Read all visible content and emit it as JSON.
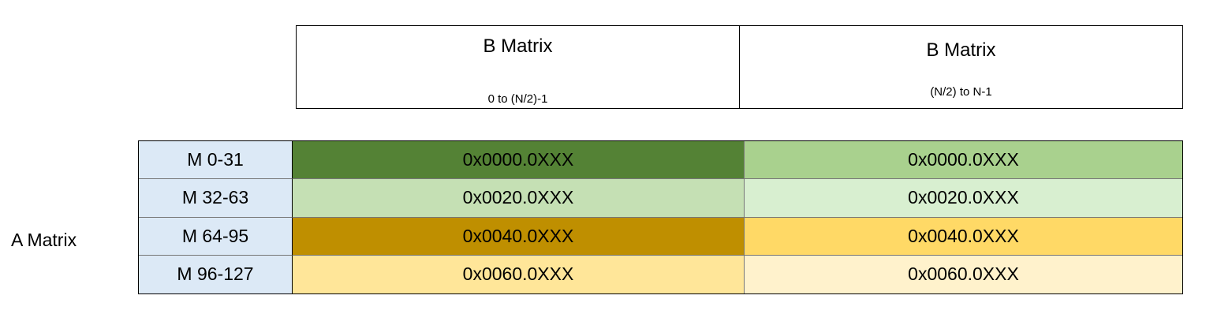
{
  "b_header": [
    {
      "title": "B Matrix",
      "subtitle": "0 to (N/2)-1"
    },
    {
      "title": "B Matrix",
      "subtitle": "(N/2) to N-1"
    }
  ],
  "a_label": "A Matrix",
  "rows": [
    {
      "label": "M 0-31",
      "cells": [
        {
          "text": "0x0000.0XXX",
          "color": "#548235"
        },
        {
          "text": "0x0000.0XXX",
          "color": "#a9d18e"
        }
      ]
    },
    {
      "label": "M 32-63",
      "cells": [
        {
          "text": "0x0020.0XXX",
          "color": "#c5e0b4"
        },
        {
          "text": "0x0020.0XXX",
          "color": "#d8efd0"
        }
      ]
    },
    {
      "label": "M 64-95",
      "cells": [
        {
          "text": "0x0040.0XXX",
          "color": "#bf8f00"
        },
        {
          "text": "0x0040.0XXX",
          "color": "#ffd966"
        }
      ]
    },
    {
      "label": "M 96-127",
      "cells": [
        {
          "text": "0x0060.0XXX",
          "color": "#ffe699"
        },
        {
          "text": "0x0060.0XXX",
          "color": "#fff2cc"
        }
      ]
    }
  ]
}
